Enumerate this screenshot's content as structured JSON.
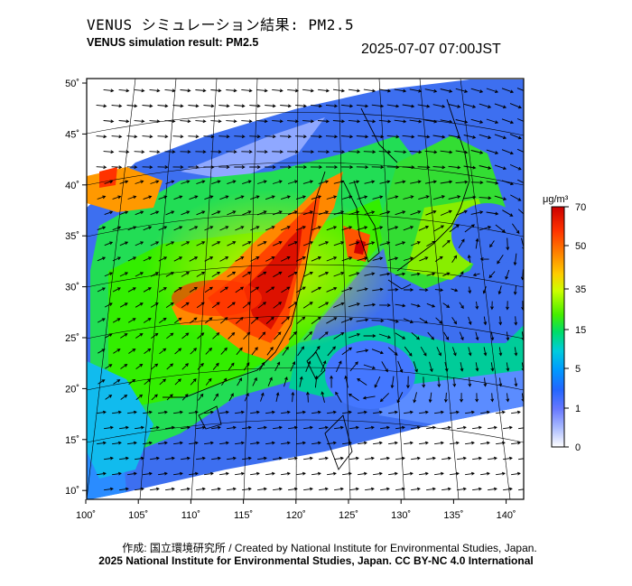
{
  "header": {
    "title_jp": "VENUS シミュレーション結果: PM2.5",
    "title_en": "VENUS simulation result: PM2.5",
    "timestamp": "2025-07-07 07:00JST"
  },
  "map": {
    "lon_range": [
      100,
      140
    ],
    "lat_range": [
      10,
      50
    ],
    "lon_ticks": [
      "100˚",
      "105˚",
      "110˚",
      "115˚",
      "120˚",
      "125˚",
      "130˚",
      "135˚",
      "140˚"
    ],
    "lat_ticks": [
      "50˚",
      "45˚",
      "40˚",
      "35˚",
      "30˚",
      "25˚",
      "20˚",
      "15˚",
      "10˚"
    ],
    "colors": {
      "frame": "#000000",
      "coast": "#000000",
      "grid": "#000000"
    }
  },
  "colorbar": {
    "unit": "μg/m³",
    "labels": [
      "70",
      "50",
      "35",
      "15",
      "5",
      "1",
      "0"
    ],
    "stops": [
      "#cc0000",
      "#ff3300",
      "#ff7700",
      "#ffbb00",
      "#ffee00",
      "#ccff00",
      "#66ff00",
      "#00ee44",
      "#00ddaa",
      "#00bbee",
      "#0099ff",
      "#2266ff",
      "#5577ff",
      "#99aaff",
      "#ddddff",
      "#ffffff"
    ]
  },
  "footer": {
    "credit": "作成: 国立環境研究所 / Created by National Institute for Environmental Studies, Japan.",
    "copyright": "2025 National Institute for Environmental Studies, Japan. CC BY-NC 4.0 International"
  }
}
